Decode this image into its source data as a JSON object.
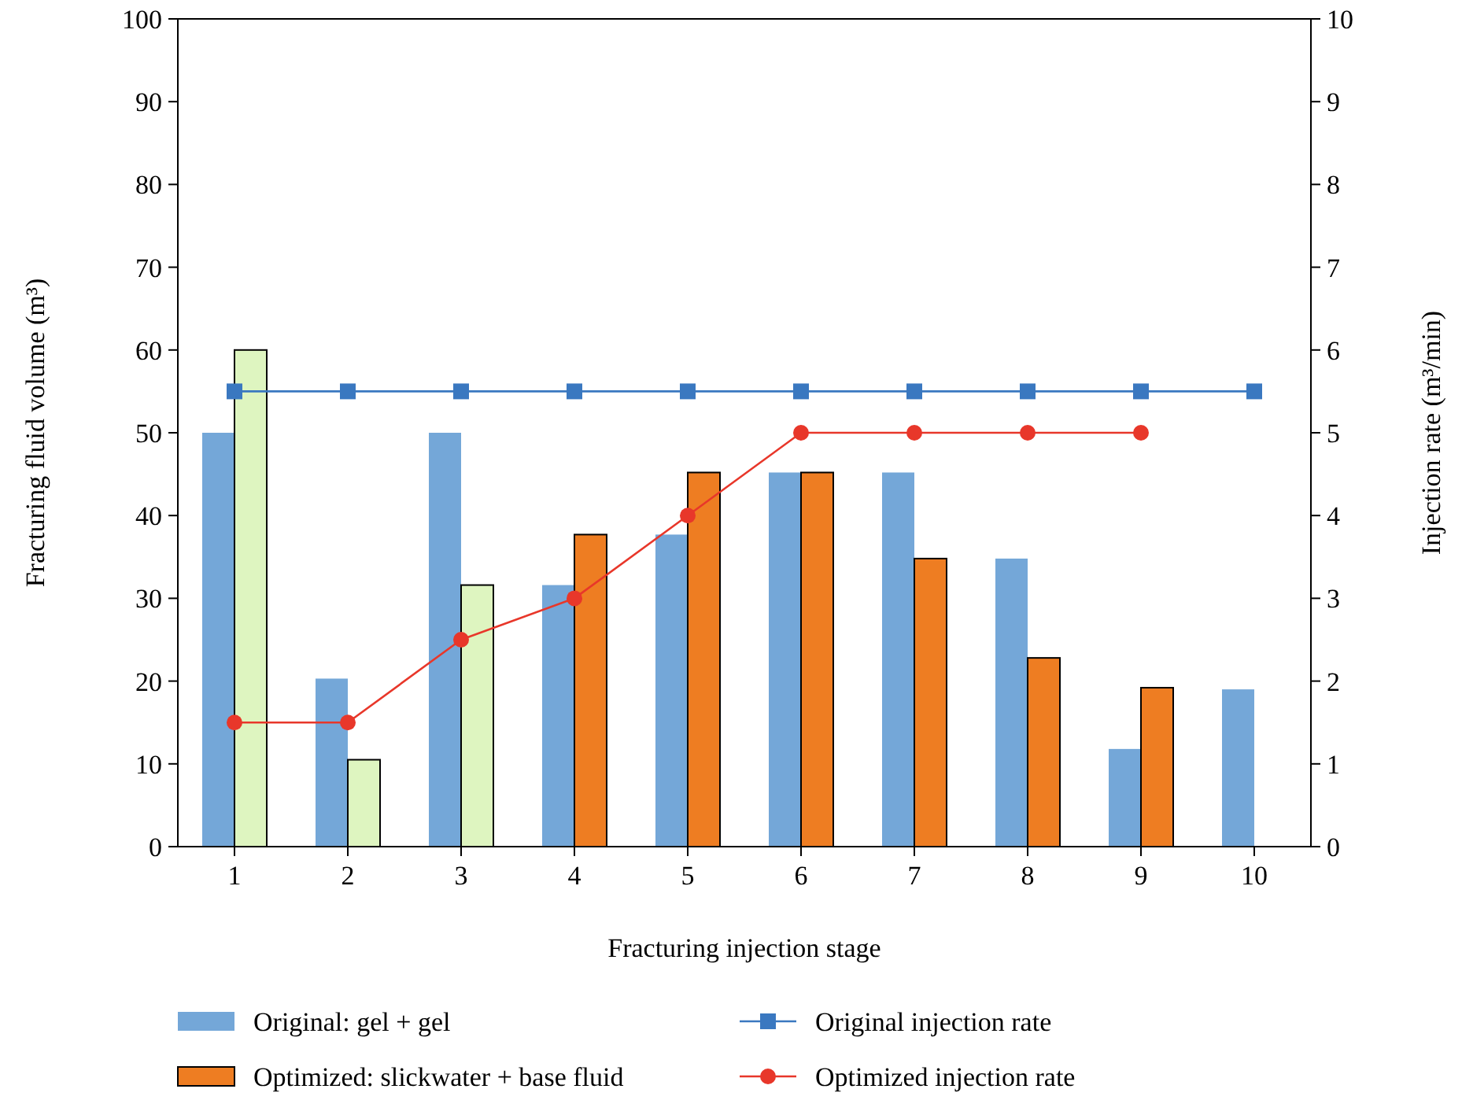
{
  "chart_data": {
    "type": "bar",
    "xlabel": "Fracturing injection stage",
    "ylabel": "Fracturing fluid volume (m³)",
    "y2label": "Injection rate (m³/min)",
    "categories": [
      "1",
      "2",
      "3",
      "4",
      "5",
      "6",
      "7",
      "8",
      "9",
      "10"
    ],
    "series": [
      {
        "name": "Original: gel + gel",
        "color": "#74a7d8",
        "values": [
          50,
          20.3,
          50,
          31.6,
          37.7,
          45.2,
          45.2,
          34.8,
          11.8,
          19
        ]
      },
      {
        "name": "Optimized: slickwater + base fluid",
        "color": "#ee7d22",
        "colors": [
          "#def5c0",
          "#def5c0",
          "#def5c0",
          "#ee7d22",
          "#ee7d22",
          "#ee7d22",
          "#ee7d22",
          "#ee7d22",
          "#ee7d22",
          null
        ],
        "values": [
          60,
          10.5,
          31.6,
          37.7,
          45.2,
          45.2,
          34.8,
          22.8,
          19.2,
          null
        ]
      },
      {
        "name": "Original injection rate",
        "type": "line",
        "axis": "y2",
        "color": "#3a78c0",
        "marker": "square",
        "values": [
          5.5,
          5.5,
          5.5,
          5.5,
          5.5,
          5.5,
          5.5,
          5.5,
          5.5,
          5.5
        ]
      },
      {
        "name": "Optimized injection rate",
        "type": "line",
        "axis": "y2",
        "color": "#e8372a",
        "marker": "circle",
        "values": [
          1.5,
          1.5,
          2.5,
          3,
          4,
          5,
          5,
          5,
          5,
          null
        ]
      }
    ],
    "ylim": [
      0,
      100
    ],
    "yticks": [
      0,
      10,
      20,
      30,
      40,
      50,
      60,
      70,
      80,
      90,
      100
    ],
    "y2lim": [
      0,
      10
    ],
    "y2ticks": [
      0,
      1,
      2,
      3,
      4,
      5,
      6,
      7,
      8,
      9,
      10
    ],
    "legend": "bottom",
    "grid": false
  }
}
